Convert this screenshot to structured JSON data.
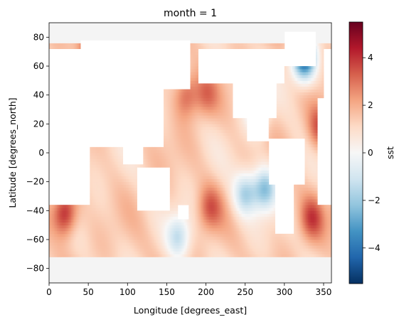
{
  "chart_data": {
    "type": "heatmap",
    "title": "month = 1",
    "xlabel": "Longitude [degrees_east]",
    "ylabel": "Latitude [degrees_north]",
    "colorbar_label": "sst",
    "xlim": [
      0,
      360
    ],
    "ylim": [
      -90,
      90
    ],
    "x_ticks": [
      0,
      50,
      100,
      150,
      200,
      250,
      300,
      350
    ],
    "y_ticks": [
      -80,
      -60,
      -40,
      -20,
      0,
      20,
      40,
      60,
      80
    ],
    "colorbar_range": [
      -5.5,
      5.5
    ],
    "colorbar_ticks": [
      -4,
      -2,
      0,
      2,
      4
    ],
    "colormap": "RdBu_r",
    "grid": false,
    "cell_size_degrees": 2,
    "land_color": "#ffffff",
    "ice_color": "#f4f4f4",
    "anomaly_features": [
      {
        "lon": 175,
        "lat": 40,
        "value": 3.3
      },
      {
        "lon": 200,
        "lat": 40,
        "value": 2.8
      },
      {
        "lon": 20,
        "lat": -42,
        "value": 4.5
      },
      {
        "lon": 205,
        "lat": -38,
        "value": 3.2
      },
      {
        "lon": 335,
        "lat": -45,
        "value": 3.4
      },
      {
        "lon": 345,
        "lat": 18,
        "value": 3.5
      },
      {
        "lon": 52,
        "lat": 70,
        "value": 4.0
      },
      {
        "lon": 325,
        "lat": 65,
        "value": -4.5
      },
      {
        "lon": 275,
        "lat": -25,
        "value": -2.2
      },
      {
        "lon": 250,
        "lat": -28,
        "value": -1.6
      },
      {
        "lon": 165,
        "lat": -58,
        "value": -1.2
      },
      {
        "lon": 265,
        "lat": 30,
        "value": -1.0
      }
    ]
  },
  "colors": {
    "axis": "#000000",
    "background": "#ffffff"
  }
}
